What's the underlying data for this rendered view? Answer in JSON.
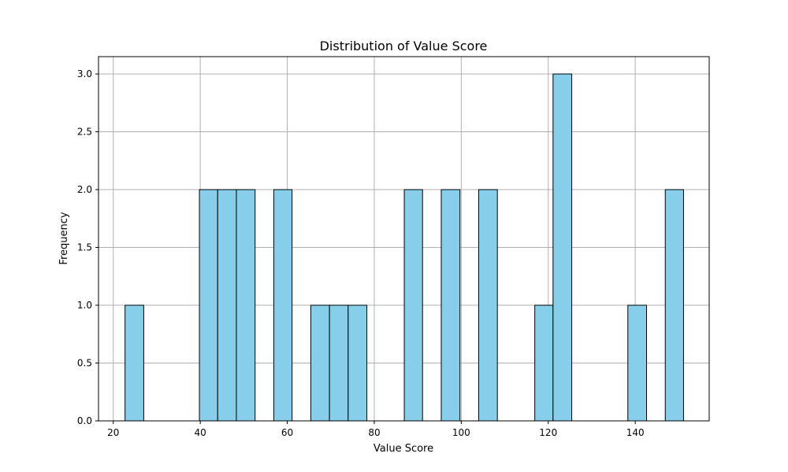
{
  "chart_data": {
    "type": "bar",
    "title": "Distribution of Value Score",
    "xlabel": "Value Score",
    "ylabel": "Frequency",
    "xlim": [
      16.6,
      157.0
    ],
    "ylim": [
      0,
      3.15
    ],
    "xticks": [
      20,
      40,
      60,
      80,
      100,
      120,
      140
    ],
    "yticks": [
      0.0,
      0.5,
      1.0,
      1.5,
      2.0,
      2.5,
      3.0
    ],
    "xtick_labels": [
      "20",
      "40",
      "60",
      "80",
      "100",
      "120",
      "140"
    ],
    "ytick_labels": [
      "0.0",
      "0.5",
      "1.0",
      "1.5",
      "2.0",
      "2.5",
      "3.0"
    ],
    "grid": true,
    "bar_color": "#87ceeb",
    "edge_color": "#000000",
    "bins": [
      {
        "x0": 22.7,
        "x1": 27.0,
        "value": 1
      },
      {
        "x0": 39.8,
        "x1": 44.0,
        "value": 2
      },
      {
        "x0": 44.0,
        "x1": 48.3,
        "value": 2
      },
      {
        "x0": 48.3,
        "x1": 52.6,
        "value": 2
      },
      {
        "x0": 56.9,
        "x1": 61.1,
        "value": 2
      },
      {
        "x0": 65.4,
        "x1": 69.7,
        "value": 1
      },
      {
        "x0": 69.7,
        "x1": 74.0,
        "value": 1
      },
      {
        "x0": 74.0,
        "x1": 78.3,
        "value": 1
      },
      {
        "x0": 86.9,
        "x1": 91.1,
        "value": 2
      },
      {
        "x0": 95.4,
        "x1": 99.7,
        "value": 2
      },
      {
        "x0": 104.0,
        "x1": 108.3,
        "value": 2
      },
      {
        "x0": 116.9,
        "x1": 121.1,
        "value": 1
      },
      {
        "x0": 121.1,
        "x1": 125.4,
        "value": 3
      },
      {
        "x0": 138.3,
        "x1": 142.6,
        "value": 1
      },
      {
        "x0": 146.9,
        "x1": 151.1,
        "value": 2
      }
    ]
  }
}
